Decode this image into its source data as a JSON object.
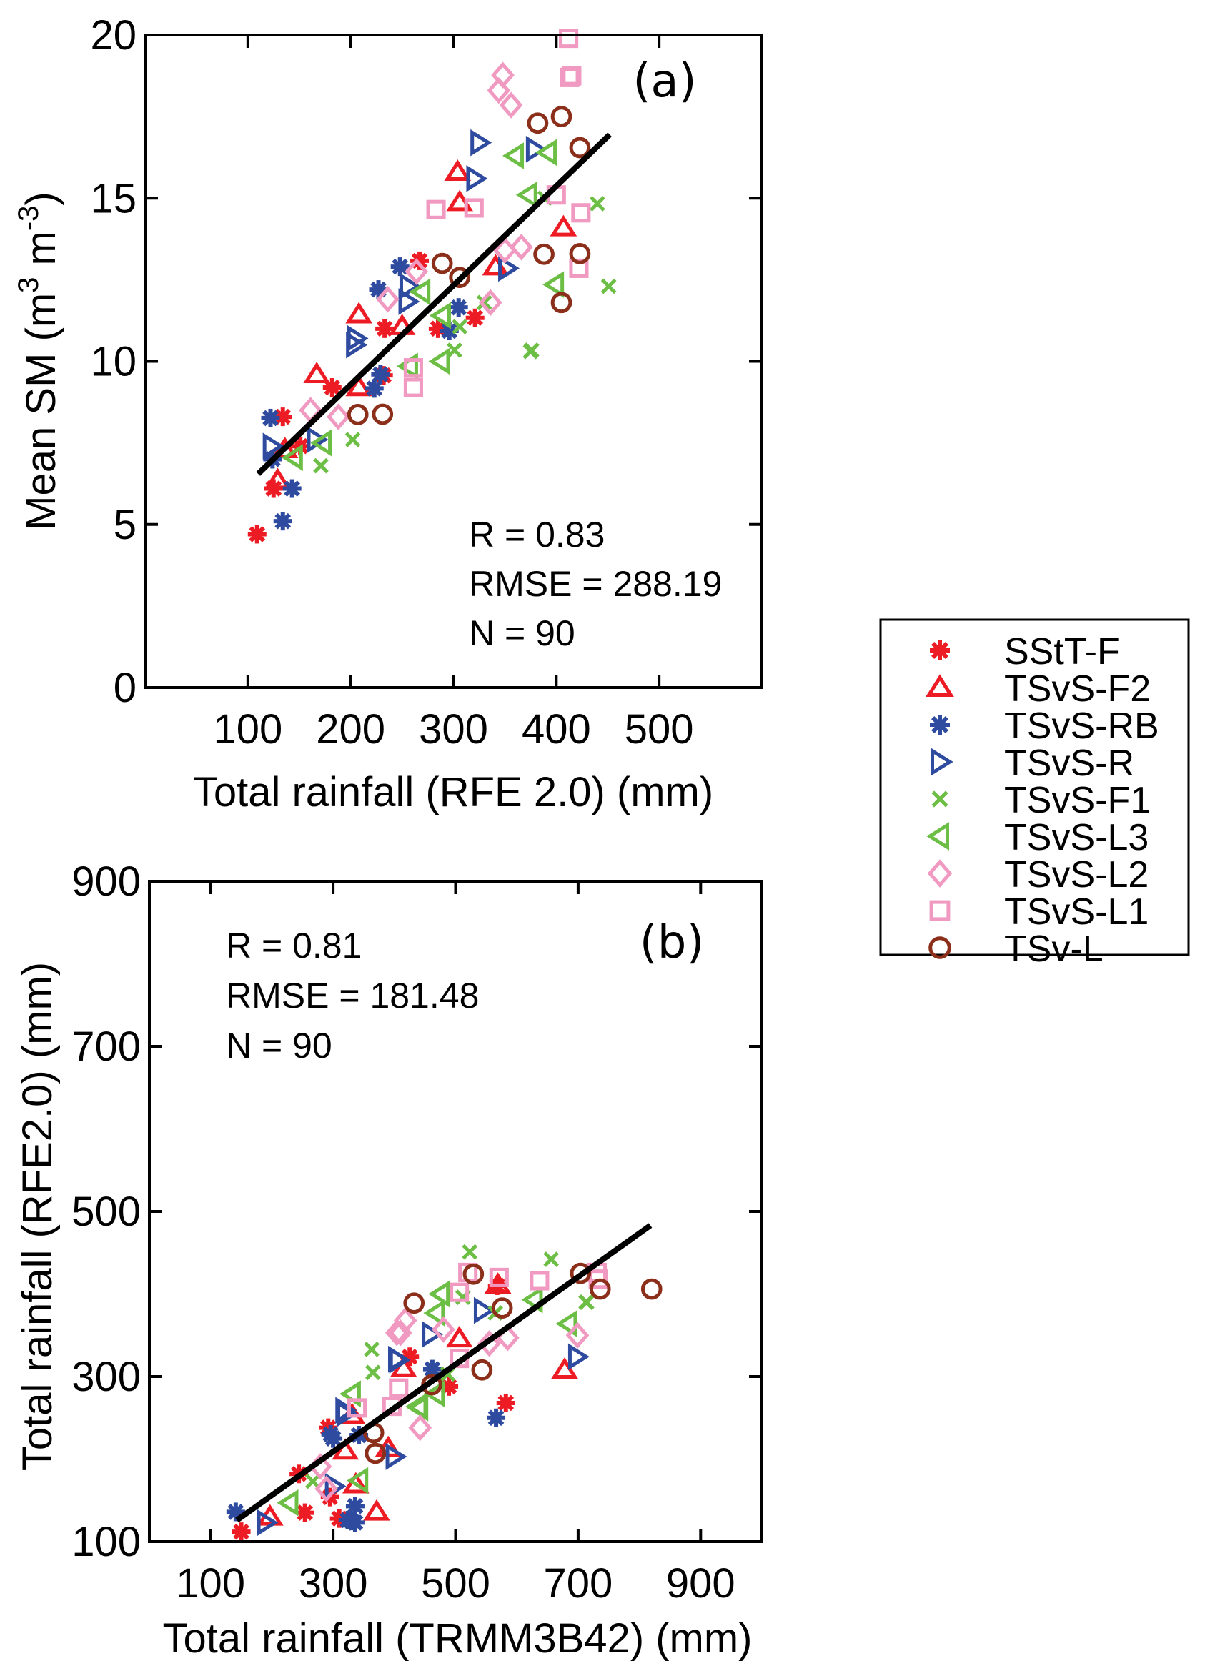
{
  "chart_data": [
    {
      "type": "scatter",
      "panel_label": "(a)",
      "xlabel": "Total rainfall (RFE 2.0) (mm)",
      "ylabel": {
        "main": "Mean SM (m",
        "sup1": "3",
        "mid": " m",
        "sup2": "-3",
        "end": ")"
      },
      "xlim": [
        0,
        600
      ],
      "ylim": [
        0,
        20
      ],
      "xticks": [
        100,
        200,
        300,
        400,
        500
      ],
      "xtick_labels": [
        "100",
        "200",
        "300",
        "400",
        "500"
      ],
      "yticks": [
        0,
        5,
        10,
        15,
        20
      ],
      "ytick_labels": [
        "0",
        "5",
        "10",
        "15",
        "20"
      ],
      "grid": false,
      "annotations": [
        "R = 0.83",
        "RMSE = 288.19",
        "N = 90"
      ],
      "annotation_position": "bottom-right",
      "fit_line": {
        "x": [
          110,
          452
        ],
        "y": [
          6.55,
          16.95
        ]
      },
      "series": [
        {
          "name": "SStT-F",
          "marker": "asterisk",
          "color": "#ED1C24",
          "x": [
            109,
            125,
            134,
            151,
            182,
            232,
            233,
            267,
            285,
            321
          ],
          "y": [
            4.7,
            6.1,
            8.3,
            7.4,
            9.2,
            9.57,
            11.0,
            13.08,
            11.0,
            11.33
          ]
        },
        {
          "name": "TSvS-F2",
          "marker": "triangle-up",
          "color": "#ED1C24",
          "x": [
            129,
            136,
            167,
            208,
            208,
            250,
            304,
            306,
            341,
            407
          ],
          "y": [
            6.35,
            7.3,
            9.6,
            9.2,
            11.43,
            11.07,
            15.8,
            14.87,
            12.9,
            14.1
          ]
        },
        {
          "name": "TSvS-RB",
          "marker": "asterisk",
          "color": "#2E4BA0",
          "x": [
            122,
            124,
            134,
            143,
            223,
            229,
            227,
            248,
            296,
            305
          ],
          "y": [
            8.26,
            7.0,
            5.1,
            6.1,
            9.17,
            9.6,
            12.2,
            12.9,
            10.93,
            11.65
          ]
        },
        {
          "name": "TSvS-R",
          "marker": "triangle-right",
          "color": "#2E4BA0",
          "x": [
            123,
            166,
            204,
            205,
            255,
            256,
            321,
            325,
            352,
            379
          ],
          "y": [
            7.4,
            7.6,
            10.5,
            10.7,
            11.83,
            12.3,
            15.6,
            16.7,
            12.85,
            16.5
          ]
        },
        {
          "name": "TSvS-F1",
          "marker": "x",
          "color": "#6CBE45",
          "x": [
            171,
            202,
            301,
            306,
            330,
            375,
            376,
            389,
            440,
            451
          ],
          "y": [
            6.8,
            7.6,
            10.34,
            11.06,
            11.8,
            10.3,
            10.34,
            15.0,
            14.83,
            12.3
          ]
        },
        {
          "name": "TSvS-L3",
          "marker": "triangle-left",
          "color": "#6CBE45",
          "x": [
            145,
            173,
            257,
            269,
            288,
            289,
            360,
            373,
            392,
            399
          ],
          "y": [
            7.05,
            7.5,
            9.85,
            12.13,
            10.0,
            11.4,
            16.3,
            15.1,
            16.4,
            12.35
          ]
        },
        {
          "name": "TSvS-L2",
          "marker": "diamond",
          "color": "#F19AC1",
          "x": [
            161,
            188,
            236,
            264,
            336,
            344,
            348,
            350,
            356,
            366
          ],
          "y": [
            8.5,
            8.3,
            11.9,
            12.75,
            11.8,
            18.3,
            18.77,
            13.4,
            17.85,
            13.5
          ]
        },
        {
          "name": "TSvS-L1",
          "marker": "square",
          "color": "#F19AC1",
          "x": [
            261,
            261,
            283,
            320,
            400,
            412,
            413,
            415,
            422,
            424
          ],
          "y": [
            9.2,
            9.8,
            14.65,
            14.7,
            15.1,
            19.9,
            18.7,
            18.75,
            12.85,
            14.55
          ]
        },
        {
          "name": "TSv-L",
          "marker": "circle",
          "color": "#8B2E1A",
          "x": [
            207,
            231,
            289,
            306,
            382,
            388,
            405,
            405,
            423,
            423
          ],
          "y": [
            8.37,
            8.38,
            13.0,
            12.57,
            17.3,
            13.28,
            17.5,
            11.8,
            16.55,
            13.3
          ]
        }
      ]
    },
    {
      "type": "scatter",
      "panel_label": "(b)",
      "xlabel": "Total rainfall (TRMM3B42) (mm)",
      "ylabel": "Total rainfall (RFE2.0) (mm)",
      "xlim": [
        0,
        1000
      ],
      "ylim": [
        100,
        900
      ],
      "xticks": [
        100,
        300,
        500,
        700,
        900
      ],
      "xtick_labels": [
        "100",
        "300",
        "500",
        "700",
        "900"
      ],
      "yticks": [
        100,
        300,
        500,
        700,
        900
      ],
      "ytick_labels": [
        "100",
        "300",
        "500",
        "700",
        "900"
      ],
      "grid": false,
      "annotations": [
        "R = 0.81",
        "RMSE = 181.48",
        "N = 90"
      ],
      "annotation_position": "top-left",
      "fit_line": {
        "x": [
          143,
          818
        ],
        "y": [
          126,
          483
        ]
      },
      "series": [
        {
          "name": "SStT-F",
          "marker": "asterisk",
          "color": "#ED1C24",
          "x": [
            150,
            244,
            254,
            292,
            295,
            310,
            425,
            489,
            582,
            568
          ],
          "y": [
            112,
            182,
            135,
            238,
            154,
            128,
            324,
            288,
            268,
            410
          ]
        },
        {
          "name": "TSvS-F2",
          "marker": "triangle-up",
          "color": "#ED1C24",
          "x": [
            197,
            320,
            331,
            337,
            371,
            390,
            415,
            506,
            569,
            678
          ],
          "y": [
            130,
            210,
            253,
            169,
            136,
            213,
            310,
            346,
            411,
            308
          ]
        },
        {
          "name": "TSvS-RB",
          "marker": "asterisk",
          "color": "#2E4BA0",
          "x": [
            141,
            296,
            324,
            336,
            336,
            342,
            462,
            566,
            330,
            300
          ],
          "y": [
            136,
            230,
            126,
            143,
            123,
            229,
            309,
            250,
            125,
            225
          ]
        },
        {
          "name": "TSvS-R",
          "marker": "triangle-right",
          "color": "#2E4BA0",
          "x": [
            190,
            301,
            318,
            400,
            404,
            406,
            459,
            544,
            698,
            320
          ],
          "y": [
            123,
            167,
            259,
            203,
            321,
            320,
            351,
            380,
            324,
            255
          ]
        },
        {
          "name": "TSvS-F1",
          "marker": "x",
          "color": "#6CBE45",
          "x": [
            267,
            363,
            365,
            487,
            512,
            523,
            565,
            656,
            713,
            714
          ],
          "y": [
            173,
            333,
            305,
            303,
            396,
            451,
            377,
            442,
            390,
            390
          ]
        },
        {
          "name": "TSvS-L3",
          "marker": "triangle-left",
          "color": "#6CBE45",
          "x": [
            229,
            331,
            343,
            439,
            441,
            468,
            468,
            476,
            628,
            684
          ],
          "y": [
            147,
            279,
            174,
            264,
            262,
            279,
            377,
            400,
            393,
            364
          ]
        },
        {
          "name": "TSvS-L2",
          "marker": "diamond",
          "color": "#F19AC1",
          "x": [
            279,
            289,
            404,
            410,
            418,
            442,
            480,
            555,
            585,
            699
          ],
          "y": [
            191,
            164,
            353,
            353,
            368,
            238,
            357,
            340,
            347,
            350
          ]
        },
        {
          "name": "TSvS-L1",
          "marker": "square",
          "color": "#F19AC1",
          "x": [
            339,
            396,
            407,
            506,
            506,
            520,
            571,
            637,
            731,
            733
          ],
          "y": [
            262,
            264,
            286,
            322,
            402,
            426,
            420,
            416,
            426,
            418
          ]
        },
        {
          "name": "TSv-L",
          "marker": "circle",
          "color": "#8B2E1A",
          "x": [
            366,
            369,
            432,
            461,
            529,
            543,
            576,
            704,
            736,
            820
          ],
          "y": [
            232,
            207,
            389,
            290,
            424,
            308,
            383,
            425,
            406,
            406
          ]
        }
      ]
    }
  ],
  "legend": {
    "position": "right",
    "entries": [
      {
        "label": "SStT-F",
        "marker": "asterisk",
        "color": "#ED1C24"
      },
      {
        "label": "TSvS-F2",
        "marker": "triangle-up",
        "color": "#ED1C24"
      },
      {
        "label": "TSvS-RB",
        "marker": "asterisk",
        "color": "#2E4BA0"
      },
      {
        "label": "TSvS-R",
        "marker": "triangle-right",
        "color": "#2E4BA0"
      },
      {
        "label": "TSvS-F1",
        "marker": "x",
        "color": "#6CBE45"
      },
      {
        "label": "TSvS-L3",
        "marker": "triangle-left",
        "color": "#6CBE45"
      },
      {
        "label": "TSvS-L2",
        "marker": "diamond",
        "color": "#F19AC1"
      },
      {
        "label": "TSvS-L1",
        "marker": "square",
        "color": "#F19AC1"
      },
      {
        "label": "TSv-L",
        "marker": "circle",
        "color": "#8B2E1A"
      }
    ]
  }
}
